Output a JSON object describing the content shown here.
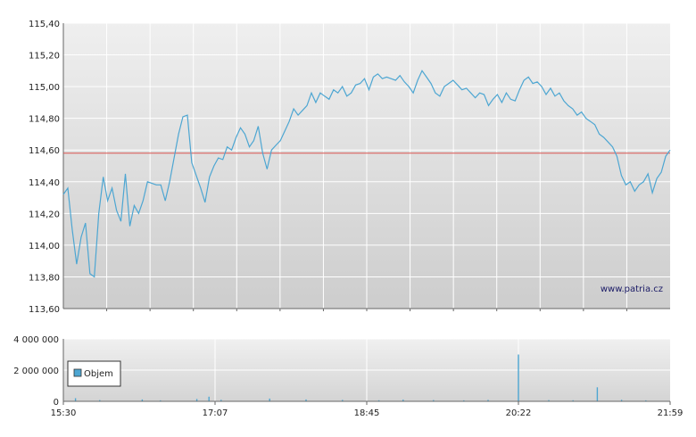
{
  "chart_data": [
    {
      "type": "line",
      "watermark": "www.patria.cz",
      "ylim": [
        113.6,
        115.4
      ],
      "y_ticks": [
        "113,60",
        "113,80",
        "114,00",
        "114,20",
        "114,40",
        "114,60",
        "114,80",
        "115,00",
        "115,20",
        "115,40"
      ],
      "reference_line": 114.58,
      "grid": true,
      "colors": {
        "line": "#4da6d2",
        "reference": "#d9534f"
      },
      "series": [
        {
          "values": [
            114.32,
            114.36,
            114.1,
            113.88,
            114.05,
            114.14,
            113.82,
            113.8,
            114.2,
            114.43,
            114.28,
            114.36,
            114.22,
            114.15,
            114.45,
            114.12,
            114.25,
            114.2,
            114.28,
            114.4,
            114.39,
            114.38,
            114.38,
            114.28,
            114.4,
            114.55,
            114.7,
            114.81,
            114.82,
            114.52,
            114.44,
            114.36,
            114.27,
            114.43,
            114.5,
            114.55,
            114.54,
            114.62,
            114.6,
            114.68,
            114.74,
            114.7,
            114.62,
            114.66,
            114.75,
            114.58,
            114.48,
            114.6,
            114.63,
            114.66,
            114.72,
            114.78,
            114.86,
            114.82,
            114.85,
            114.88,
            114.96,
            114.9,
            114.96,
            114.94,
            114.92,
            114.98,
            114.96,
            115.0,
            114.94,
            114.96,
            115.01,
            115.02,
            115.05,
            114.98,
            115.06,
            115.08,
            115.05,
            115.06,
            115.05,
            115.04,
            115.07,
            115.03,
            115.0,
            114.96,
            115.04,
            115.1,
            115.06,
            115.02,
            114.96,
            114.94,
            115.0,
            115.02,
            115.04,
            115.01,
            114.98,
            114.99,
            114.96,
            114.93,
            114.96,
            114.95,
            114.88,
            114.92,
            114.95,
            114.9,
            114.96,
            114.92,
            114.91,
            114.98,
            115.04,
            115.06,
            115.02,
            115.03,
            115.0,
            114.95,
            114.99,
            114.94,
            114.96,
            114.91,
            114.88,
            114.86,
            114.82,
            114.84,
            114.8,
            114.78,
            114.76,
            114.7,
            114.68,
            114.65,
            114.62,
            114.56,
            114.44,
            114.38,
            114.4,
            114.34,
            114.38,
            114.4,
            114.45,
            114.33,
            114.42,
            114.46,
            114.56,
            114.6
          ]
        }
      ],
      "x_range": [
        0,
        1
      ]
    },
    {
      "type": "bar",
      "ylim": [
        0,
        4000000
      ],
      "y_ticks": [
        "0",
        "2 000 000",
        "4 000 000"
      ],
      "x_ticks": [
        "15:30",
        "17:07",
        "18:45",
        "20:22",
        "21:59"
      ],
      "legend": [
        "Objem"
      ],
      "legend_position": "top-left",
      "grid": true,
      "colors": {
        "bar": "#4da6d2"
      },
      "series": [
        {
          "name": "Objem",
          "spikes": [
            {
              "t": 0.02,
              "v": 200000
            },
            {
              "t": 0.06,
              "v": 80000
            },
            {
              "t": 0.13,
              "v": 120000
            },
            {
              "t": 0.16,
              "v": 60000
            },
            {
              "t": 0.22,
              "v": 150000
            },
            {
              "t": 0.24,
              "v": 300000
            },
            {
              "t": 0.26,
              "v": 100000
            },
            {
              "t": 0.34,
              "v": 180000
            },
            {
              "t": 0.4,
              "v": 120000
            },
            {
              "t": 0.46,
              "v": 90000
            },
            {
              "t": 0.52,
              "v": 70000
            },
            {
              "t": 0.56,
              "v": 110000
            },
            {
              "t": 0.61,
              "v": 80000
            },
            {
              "t": 0.66,
              "v": 60000
            },
            {
              "t": 0.7,
              "v": 90000
            },
            {
              "t": 0.75,
              "v": 3000000
            },
            {
              "t": 0.8,
              "v": 80000
            },
            {
              "t": 0.84,
              "v": 70000
            },
            {
              "t": 0.88,
              "v": 900000
            },
            {
              "t": 0.92,
              "v": 100000
            },
            {
              "t": 0.96,
              "v": 60000
            }
          ]
        }
      ],
      "x_range": [
        0,
        1
      ]
    }
  ]
}
